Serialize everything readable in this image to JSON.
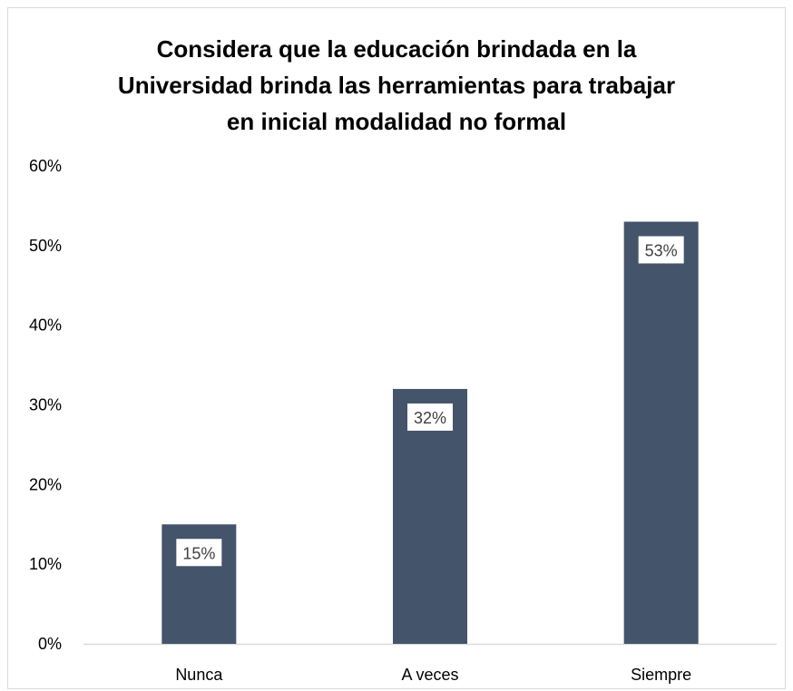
{
  "chart_data": {
    "type": "bar",
    "title_lines": [
      "Considera que la educación brindada en la",
      "Universidad brinda las herramientas para trabajar",
      "en inicial modalidad no formal"
    ],
    "categories": [
      "Nunca",
      "A veces",
      "Siempre"
    ],
    "values": [
      15,
      32,
      53
    ],
    "data_labels": [
      "15%",
      "32%",
      "53%"
    ],
    "ylim": [
      0,
      60
    ],
    "yticks": [
      0,
      10,
      20,
      30,
      40,
      50,
      60
    ],
    "ytick_labels": [
      "0%",
      "10%",
      "20%",
      "30%",
      "40%",
      "50%",
      "60%"
    ],
    "xlabel": "",
    "ylabel": "",
    "grid": false,
    "legend": "none",
    "bar_color": "#44546a",
    "label_box_color": "#ffffff"
  }
}
